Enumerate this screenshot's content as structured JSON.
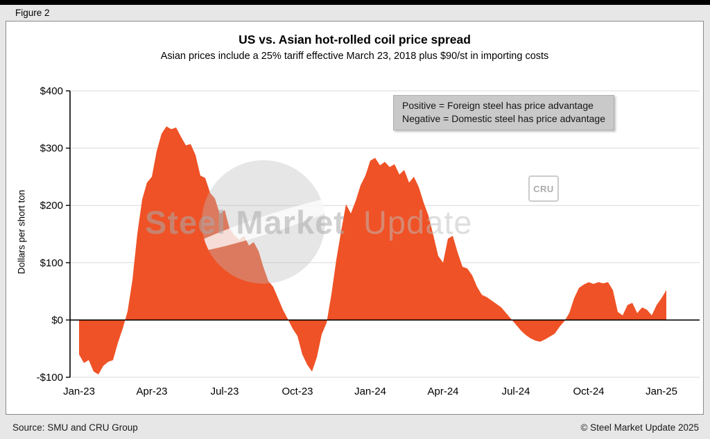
{
  "figure_label": "Figure 2",
  "footer": {
    "source": "Source: SMU and CRU Group",
    "copyright": "© Steel Market Update 2025"
  },
  "watermark": {
    "strong": "Steel Market",
    "light": "Update",
    "logo_text": "CRU"
  },
  "legend": {
    "lines": [
      "Positive = Foreign steel has price advantage",
      "Negative = Domestic steel has price advantage"
    ]
  },
  "chart_data": {
    "type": "area",
    "title": "US vs. Asian hot-rolled coil price spread",
    "subtitle": "Asian prices include a 25% tariff effective March 23, 2018 plus $90/st in importing costs",
    "ylabel": "Dollars per short ton",
    "ylim": [
      -100,
      400
    ],
    "fill_color": "#EF5226",
    "zero_line_color": "#000000",
    "grid_color": "#d9d9d9",
    "grid": true,
    "legend_position": "top-right",
    "y_ticks": [
      {
        "v": -100,
        "label": "-$100"
      },
      {
        "v": 0,
        "label": "$0"
      },
      {
        "v": 100,
        "label": "$100"
      },
      {
        "v": 200,
        "label": "$200"
      },
      {
        "v": 300,
        "label": "$300"
      },
      {
        "v": 400,
        "label": "$400"
      }
    ],
    "x_ticks": [
      {
        "x": 0,
        "label": "Jan-23"
      },
      {
        "x": 3,
        "label": "Apr-23"
      },
      {
        "x": 6,
        "label": "Jul-23"
      },
      {
        "x": 9,
        "label": "Oct-23"
      },
      {
        "x": 12,
        "label": "Jan-24"
      },
      {
        "x": 15,
        "label": "Apr-24"
      },
      {
        "x": 18,
        "label": "Jul-24"
      },
      {
        "x": 21,
        "label": "Oct-24"
      },
      {
        "x": 24,
        "label": "Jan-25"
      }
    ],
    "x_unit": "months since Jan-2023",
    "series": [
      {
        "name": "US vs. Asian HRC price spread ($/short ton)",
        "x_start": 0,
        "x_step": 0.2,
        "y": [
          -60,
          -75,
          -70,
          -90,
          -95,
          -80,
          -73,
          -70,
          -40,
          -15,
          15,
          70,
          150,
          210,
          240,
          250,
          295,
          325,
          338,
          333,
          336,
          320,
          305,
          307,
          288,
          252,
          248,
          222,
          212,
          185,
          192,
          160,
          148,
          140,
          147,
          130,
          136,
          120,
          92,
          68,
          58,
          38,
          18,
          2,
          -15,
          -28,
          -60,
          -78,
          -90,
          -65,
          -25,
          -5,
          45,
          105,
          155,
          202,
          186,
          208,
          235,
          252,
          278,
          283,
          270,
          276,
          267,
          272,
          254,
          262,
          240,
          250,
          232,
          205,
          182,
          148,
          112,
          100,
          142,
          147,
          118,
          93,
          90,
          78,
          58,
          44,
          40,
          34,
          28,
          22,
          12,
          2,
          -8,
          -18,
          -26,
          -32,
          -36,
          -38,
          -34,
          -29,
          -24,
          -12,
          -2,
          12,
          38,
          56,
          62,
          66,
          63,
          66,
          64,
          66,
          52,
          14,
          8,
          26,
          30,
          12,
          22,
          18,
          8,
          26,
          38,
          52
        ]
      }
    ]
  }
}
